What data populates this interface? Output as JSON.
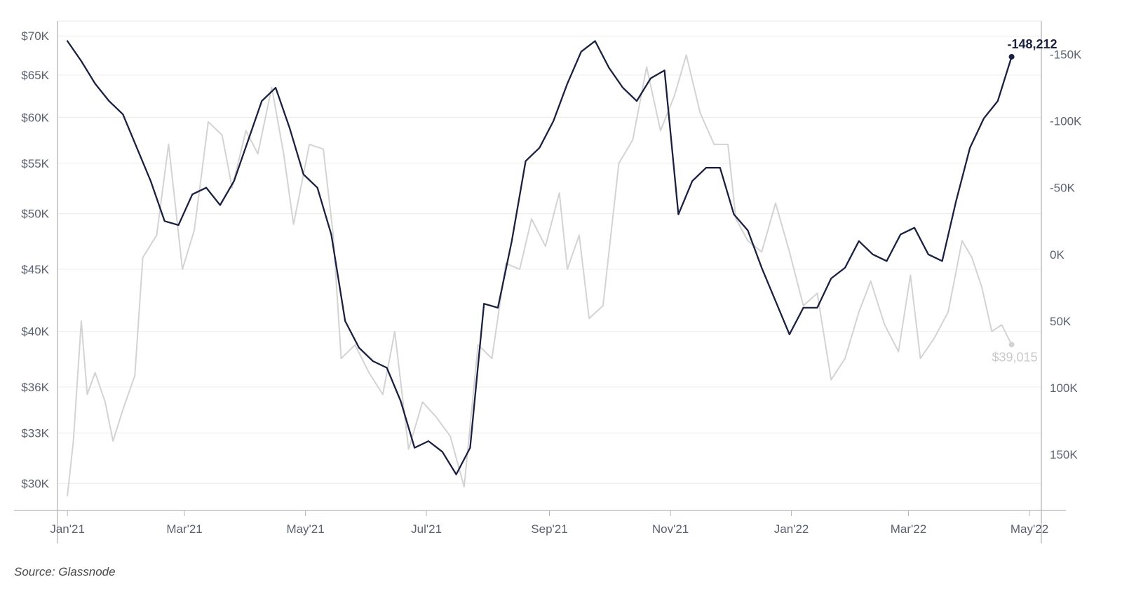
{
  "chart_data": {
    "type": "line",
    "source_note": "Source: Glassnode",
    "x_ticks": [
      "Jan'21",
      "Mar'21",
      "May'21",
      "Jul'21",
      "Sep'21",
      "Nov'21",
      "Jan'22",
      "Mar'22",
      "May'22"
    ],
    "left_axis": {
      "scale": "log",
      "ticks": [
        {
          "value": 70000,
          "label": "$70K"
        },
        {
          "value": 65000,
          "label": "$65K"
        },
        {
          "value": 60000,
          "label": "$60K"
        },
        {
          "value": 55000,
          "label": "$55K"
        },
        {
          "value": 50000,
          "label": "$50K"
        },
        {
          "value": 45000,
          "label": "$45K"
        },
        {
          "value": 40000,
          "label": "$40K"
        },
        {
          "value": 36000,
          "label": "$36K"
        },
        {
          "value": 33000,
          "label": "$33K"
        },
        {
          "value": 30000,
          "label": "$30K"
        }
      ],
      "range": [
        28500,
        72000
      ]
    },
    "right_axis": {
      "inverted": true,
      "ticks": [
        {
          "value": -150000,
          "label": "-150K"
        },
        {
          "value": -100000,
          "label": "-100K"
        },
        {
          "value": -50000,
          "label": "-50K"
        },
        {
          "value": 0,
          "label": "0K"
        },
        {
          "value": 50000,
          "label": "50K"
        },
        {
          "value": 100000,
          "label": "100K"
        },
        {
          "value": 150000,
          "label": "150K"
        }
      ],
      "range": [
        -175000,
        192000
      ]
    },
    "series": [
      {
        "axis": "right",
        "color": "#1a2140",
        "end_label": "-148,212",
        "points": [
          [
            "2021-01-01",
            -160000
          ],
          [
            "2021-01-08",
            -145000
          ],
          [
            "2021-01-15",
            -128000
          ],
          [
            "2021-01-22",
            -115000
          ],
          [
            "2021-01-29",
            -105000
          ],
          [
            "2021-02-05",
            -80000
          ],
          [
            "2021-02-12",
            -55000
          ],
          [
            "2021-02-19",
            -25000
          ],
          [
            "2021-02-26",
            -22000
          ],
          [
            "2021-03-05",
            -45000
          ],
          [
            "2021-03-12",
            -50000
          ],
          [
            "2021-03-19",
            -37000
          ],
          [
            "2021-03-26",
            -55000
          ],
          [
            "2021-04-02",
            -85000
          ],
          [
            "2021-04-09",
            -115000
          ],
          [
            "2021-04-16",
            -125000
          ],
          [
            "2021-04-23",
            -95000
          ],
          [
            "2021-04-30",
            -60000
          ],
          [
            "2021-05-07",
            -50000
          ],
          [
            "2021-05-14",
            -15000
          ],
          [
            "2021-05-21",
            50000
          ],
          [
            "2021-05-28",
            70000
          ],
          [
            "2021-06-04",
            80000
          ],
          [
            "2021-06-11",
            85000
          ],
          [
            "2021-06-18",
            110000
          ],
          [
            "2021-06-25",
            145000
          ],
          [
            "2021-07-02",
            140000
          ],
          [
            "2021-07-09",
            148000
          ],
          [
            "2021-07-16",
            165000
          ],
          [
            "2021-07-23",
            145000
          ],
          [
            "2021-07-30",
            37000
          ],
          [
            "2021-08-06",
            40000
          ],
          [
            "2021-08-13",
            -10000
          ],
          [
            "2021-08-20",
            -70000
          ],
          [
            "2021-08-27",
            -80000
          ],
          [
            "2021-09-03",
            -100000
          ],
          [
            "2021-09-10",
            -128000
          ],
          [
            "2021-09-17",
            -152000
          ],
          [
            "2021-09-24",
            -160000
          ],
          [
            "2021-10-01",
            -140000
          ],
          [
            "2021-10-08",
            -125000
          ],
          [
            "2021-10-15",
            -115000
          ],
          [
            "2021-10-22",
            -132000
          ],
          [
            "2021-10-29",
            -138000
          ],
          [
            "2021-11-05",
            -30000
          ],
          [
            "2021-11-12",
            -55000
          ],
          [
            "2021-11-19",
            -65000
          ],
          [
            "2021-11-26",
            -65000
          ],
          [
            "2021-12-03",
            -30000
          ],
          [
            "2021-12-10",
            -18000
          ],
          [
            "2021-12-17",
            10000
          ],
          [
            "2021-12-24",
            35000
          ],
          [
            "2021-12-31",
            60000
          ],
          [
            "2022-01-07",
            40000
          ],
          [
            "2022-01-14",
            40000
          ],
          [
            "2022-01-21",
            18000
          ],
          [
            "2022-01-28",
            10000
          ],
          [
            "2022-02-04",
            -10000
          ],
          [
            "2022-02-11",
            0
          ],
          [
            "2022-02-18",
            5000
          ],
          [
            "2022-02-25",
            -15000
          ],
          [
            "2022-03-04",
            -20000
          ],
          [
            "2022-03-11",
            0
          ],
          [
            "2022-03-18",
            5000
          ],
          [
            "2022-03-25",
            -40000
          ],
          [
            "2022-04-01",
            -80000
          ],
          [
            "2022-04-08",
            -102000
          ],
          [
            "2022-04-15",
            -115000
          ],
          [
            "2022-04-22",
            -148212
          ]
        ]
      },
      {
        "axis": "left",
        "color": "#d3d3d3",
        "end_label": "$39,015",
        "points": [
          [
            "2021-01-01",
            29300
          ],
          [
            "2021-01-04",
            32500
          ],
          [
            "2021-01-08",
            40800
          ],
          [
            "2021-01-11",
            35500
          ],
          [
            "2021-01-15",
            37000
          ],
          [
            "2021-01-20",
            35000
          ],
          [
            "2021-01-24",
            32500
          ],
          [
            "2021-01-29",
            34500
          ],
          [
            "2021-02-04",
            36800
          ],
          [
            "2021-02-08",
            46000
          ],
          [
            "2021-02-15",
            48000
          ],
          [
            "2021-02-21",
            57000
          ],
          [
            "2021-02-28",
            45000
          ],
          [
            "2021-03-06",
            48500
          ],
          [
            "2021-03-13",
            59500
          ],
          [
            "2021-03-20",
            58000
          ],
          [
            "2021-03-25",
            52500
          ],
          [
            "2021-04-01",
            58500
          ],
          [
            "2021-04-07",
            56000
          ],
          [
            "2021-04-14",
            63500
          ],
          [
            "2021-04-20",
            56000
          ],
          [
            "2021-04-25",
            49000
          ],
          [
            "2021-05-03",
            57000
          ],
          [
            "2021-05-10",
            56500
          ],
          [
            "2021-05-15",
            48000
          ],
          [
            "2021-05-19",
            38000
          ],
          [
            "2021-05-26",
            39000
          ],
          [
            "2021-06-02",
            37000
          ],
          [
            "2021-06-09",
            35500
          ],
          [
            "2021-06-15",
            40000
          ],
          [
            "2021-06-22",
            32000
          ],
          [
            "2021-06-29",
            35000
          ],
          [
            "2021-07-06",
            34000
          ],
          [
            "2021-07-13",
            32800
          ],
          [
            "2021-07-20",
            29800
          ],
          [
            "2021-07-27",
            39000
          ],
          [
            "2021-08-03",
            38000
          ],
          [
            "2021-08-10",
            45500
          ],
          [
            "2021-08-17",
            45000
          ],
          [
            "2021-08-23",
            49500
          ],
          [
            "2021-08-30",
            47000
          ],
          [
            "2021-09-06",
            52000
          ],
          [
            "2021-09-10",
            45000
          ],
          [
            "2021-09-16",
            48000
          ],
          [
            "2021-09-21",
            41000
          ],
          [
            "2021-09-28",
            42000
          ],
          [
            "2021-10-06",
            55000
          ],
          [
            "2021-10-13",
            57500
          ],
          [
            "2021-10-20",
            66000
          ],
          [
            "2021-10-27",
            58500
          ],
          [
            "2021-11-03",
            62500
          ],
          [
            "2021-11-09",
            67500
          ],
          [
            "2021-11-16",
            60500
          ],
          [
            "2021-11-23",
            57000
          ],
          [
            "2021-11-30",
            57000
          ],
          [
            "2021-12-04",
            49500
          ],
          [
            "2021-12-10",
            47500
          ],
          [
            "2021-12-17",
            46500
          ],
          [
            "2021-12-24",
            51000
          ],
          [
            "2021-12-31",
            46500
          ],
          [
            "2022-01-07",
            42000
          ],
          [
            "2022-01-14",
            43000
          ],
          [
            "2022-01-21",
            36500
          ],
          [
            "2022-01-28",
            38000
          ],
          [
            "2022-02-04",
            41500
          ],
          [
            "2022-02-10",
            44000
          ],
          [
            "2022-02-17",
            40500
          ],
          [
            "2022-02-24",
            38500
          ],
          [
            "2022-03-02",
            44500
          ],
          [
            "2022-03-07",
            38000
          ],
          [
            "2022-03-14",
            39500
          ],
          [
            "2022-03-21",
            41500
          ],
          [
            "2022-03-28",
            47500
          ],
          [
            "2022-04-02",
            46000
          ],
          [
            "2022-04-07",
            43500
          ],
          [
            "2022-04-12",
            40000
          ],
          [
            "2022-04-17",
            40500
          ],
          [
            "2022-04-22",
            39015
          ]
        ]
      }
    ]
  }
}
